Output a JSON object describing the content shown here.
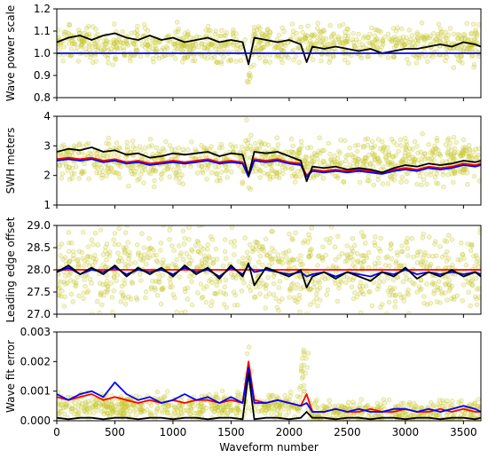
{
  "chart_data": [
    {
      "type": "line",
      "ylabel": "Wave power scale",
      "ylim": [
        0.8,
        1.2
      ],
      "yticks": [
        "0.8",
        "0.9",
        "1.0",
        "1.1",
        "1.2"
      ],
      "xlim": [
        0,
        3650
      ],
      "x": [
        0,
        100,
        200,
        300,
        400,
        500,
        600,
        700,
        800,
        900,
        1000,
        1100,
        1200,
        1300,
        1400,
        1500,
        1600,
        1650,
        1700,
        1800,
        1900,
        2000,
        2100,
        2150,
        2200,
        2300,
        2400,
        2500,
        2600,
        2700,
        2800,
        2900,
        3000,
        3100,
        3200,
        3300,
        3400,
        3500,
        3600,
        3650
      ],
      "series": [
        {
          "color": "#000000",
          "values": [
            1.05,
            1.07,
            1.08,
            1.06,
            1.08,
            1.09,
            1.07,
            1.06,
            1.08,
            1.06,
            1.07,
            1.05,
            1.06,
            1.07,
            1.05,
            1.06,
            1.05,
            0.95,
            1.07,
            1.06,
            1.05,
            1.06,
            1.04,
            0.96,
            1.03,
            1.02,
            1.03,
            1.02,
            1.01,
            1.02,
            1.0,
            1.01,
            1.02,
            1.02,
            1.03,
            1.04,
            1.03,
            1.05,
            1.04,
            1.03
          ]
        },
        {
          "color": "#0000ff",
          "values": [
            1.0,
            1.0,
            1.0,
            1.0,
            1.0,
            1.0,
            1.0,
            1.0,
            1.0,
            1.0,
            1.0,
            1.0,
            1.0,
            1.0,
            1.0,
            1.0,
            1.0,
            1.0,
            1.0,
            1.0,
            1.0,
            1.0,
            1.0,
            1.0,
            1.0,
            1.0,
            1.0,
            1.0,
            1.0,
            1.0,
            1.0,
            1.0,
            1.0,
            1.0,
            1.0,
            1.0,
            1.0,
            1.0,
            1.0,
            1.0
          ]
        }
      ],
      "scatter": {
        "color": "#c8c832",
        "center": 1.04,
        "spread": 0.04
      }
    },
    {
      "type": "line",
      "ylabel": "SWH meters",
      "ylim": [
        1,
        4
      ],
      "yticks": [
        "1",
        "2",
        "3",
        "4"
      ],
      "xlim": [
        0,
        3650
      ],
      "x": [
        0,
        100,
        200,
        300,
        400,
        500,
        600,
        700,
        800,
        900,
        1000,
        1100,
        1200,
        1300,
        1400,
        1500,
        1600,
        1650,
        1700,
        1800,
        1900,
        2000,
        2100,
        2150,
        2200,
        2300,
        2400,
        2500,
        2600,
        2700,
        2800,
        2900,
        3000,
        3100,
        3200,
        3300,
        3400,
        3500,
        3600,
        3650
      ],
      "series": [
        {
          "color": "#ff0000",
          "values": [
            2.55,
            2.6,
            2.55,
            2.6,
            2.5,
            2.55,
            2.45,
            2.5,
            2.4,
            2.45,
            2.5,
            2.45,
            2.5,
            2.55,
            2.45,
            2.5,
            2.45,
            2.0,
            2.55,
            2.5,
            2.55,
            2.45,
            2.4,
            2.0,
            2.2,
            2.15,
            2.2,
            2.15,
            2.2,
            2.15,
            2.1,
            2.2,
            2.25,
            2.2,
            2.3,
            2.25,
            2.3,
            2.4,
            2.35,
            2.4
          ]
        },
        {
          "color": "#0000ff",
          "values": [
            2.5,
            2.55,
            2.5,
            2.55,
            2.45,
            2.5,
            2.4,
            2.45,
            2.35,
            2.4,
            2.45,
            2.4,
            2.45,
            2.5,
            2.4,
            2.45,
            2.4,
            1.95,
            2.5,
            2.45,
            2.5,
            2.4,
            2.35,
            1.95,
            2.15,
            2.1,
            2.15,
            2.1,
            2.15,
            2.1,
            2.05,
            2.15,
            2.2,
            2.15,
            2.25,
            2.2,
            2.25,
            2.35,
            2.3,
            2.35
          ]
        },
        {
          "color": "#000000",
          "values": [
            2.8,
            2.9,
            2.85,
            2.95,
            2.8,
            2.85,
            2.7,
            2.75,
            2.6,
            2.65,
            2.75,
            2.7,
            2.75,
            2.8,
            2.65,
            2.75,
            2.7,
            2.0,
            2.8,
            2.75,
            2.8,
            2.65,
            2.5,
            1.8,
            2.3,
            2.25,
            2.3,
            2.2,
            2.25,
            2.2,
            2.1,
            2.25,
            2.35,
            2.3,
            2.4,
            2.35,
            2.4,
            2.5,
            2.45,
            2.5
          ]
        }
      ],
      "scatter": {
        "color": "#c8c832",
        "center": 2.5,
        "spread": 0.35
      }
    },
    {
      "type": "line",
      "ylabel": "Leading edge offset",
      "ylim": [
        27.0,
        29.0
      ],
      "yticks": [
        "27.0",
        "27.5",
        "28.0",
        "28.5",
        "29.0"
      ],
      "xlim": [
        0,
        3650
      ],
      "x": [
        0,
        100,
        200,
        300,
        400,
        500,
        600,
        700,
        800,
        900,
        1000,
        1100,
        1200,
        1300,
        1400,
        1500,
        1600,
        1650,
        1700,
        1800,
        1900,
        2000,
        2100,
        2150,
        2200,
        2300,
        2400,
        2500,
        2600,
        2700,
        2800,
        2900,
        3000,
        3100,
        3200,
        3300,
        3400,
        3500,
        3600,
        3650
      ],
      "series": [
        {
          "color": "#ff0000",
          "values": [
            28.0,
            28.0,
            28.0,
            28.0,
            28.0,
            28.0,
            28.0,
            28.0,
            28.0,
            28.0,
            28.0,
            28.0,
            28.0,
            28.0,
            28.0,
            28.0,
            28.0,
            28.0,
            28.0,
            28.0,
            28.0,
            28.0,
            28.0,
            28.0,
            28.0,
            28.0,
            28.0,
            28.0,
            28.0,
            28.0,
            28.0,
            28.0,
            28.0,
            28.0,
            28.0,
            28.0,
            28.0,
            28.0,
            28.0,
            28.0
          ]
        },
        {
          "color": "#0000ff",
          "values": [
            27.95,
            28.05,
            27.9,
            28.0,
            27.95,
            28.05,
            27.9,
            28.0,
            27.95,
            28.0,
            27.9,
            28.05,
            27.95,
            28.0,
            27.85,
            28.05,
            27.9,
            28.1,
            27.95,
            28.0,
            27.95,
            27.9,
            27.95,
            27.85,
            27.9,
            27.95,
            27.85,
            27.95,
            27.9,
            27.85,
            27.95,
            27.9,
            28.0,
            27.9,
            27.95,
            27.9,
            27.95,
            27.9,
            27.95,
            27.9
          ]
        },
        {
          "color": "#000000",
          "values": [
            27.95,
            28.1,
            27.9,
            28.05,
            27.9,
            28.1,
            27.85,
            28.05,
            27.9,
            28.05,
            27.85,
            28.1,
            27.9,
            28.05,
            27.8,
            28.1,
            27.85,
            28.15,
            27.65,
            28.05,
            27.95,
            27.85,
            28.0,
            27.6,
            27.85,
            27.95,
            27.8,
            27.95,
            27.85,
            27.75,
            27.95,
            27.85,
            28.05,
            27.8,
            27.95,
            27.85,
            28.0,
            27.85,
            27.95,
            27.85
          ]
        }
      ],
      "scatter": {
        "color": "#c8c832",
        "center": 28.0,
        "spread": 0.45
      }
    },
    {
      "type": "line",
      "ylabel": "Wave fit error",
      "xlabel": "Waveform number",
      "ylim": [
        0,
        0.003
      ],
      "yticks": [
        "0.000",
        "0.001",
        "0.002",
        "0.003"
      ],
      "xlim": [
        0,
        3650
      ],
      "xticks": [
        "0",
        "500",
        "1000",
        "1500",
        "2000",
        "2500",
        "3000",
        "3500"
      ],
      "x": [
        0,
        100,
        200,
        300,
        400,
        500,
        600,
        700,
        800,
        900,
        1000,
        1100,
        1200,
        1300,
        1400,
        1500,
        1600,
        1650,
        1700,
        1800,
        1900,
        2000,
        2100,
        2150,
        2200,
        2300,
        2400,
        2500,
        2600,
        2700,
        2800,
        2900,
        3000,
        3100,
        3200,
        3300,
        3400,
        3500,
        3600,
        3650
      ],
      "series": [
        {
          "color": "#ff0000",
          "values": [
            0.0008,
            0.0007,
            0.0008,
            0.0009,
            0.0007,
            0.0008,
            0.0007,
            0.0006,
            0.0007,
            0.0006,
            0.0007,
            0.0006,
            0.0007,
            0.0007,
            0.0006,
            0.0007,
            0.0006,
            0.002,
            0.0007,
            0.0006,
            0.0007,
            0.0006,
            0.0005,
            0.0009,
            0.0003,
            0.0003,
            0.0004,
            0.0003,
            0.0003,
            0.0004,
            0.0003,
            0.0003,
            0.0004,
            0.0003,
            0.0003,
            0.0004,
            0.0003,
            0.0004,
            0.0003,
            0.0003
          ]
        },
        {
          "color": "#0000ff",
          "values": [
            0.0009,
            0.0007,
            0.0009,
            0.001,
            0.0008,
            0.0013,
            0.0009,
            0.0007,
            0.0008,
            0.0006,
            0.0007,
            0.0009,
            0.0007,
            0.0008,
            0.0006,
            0.0008,
            0.0006,
            0.0018,
            0.0006,
            0.0006,
            0.0007,
            0.0006,
            0.0005,
            0.0006,
            0.0003,
            0.0003,
            0.0004,
            0.0003,
            0.0004,
            0.0003,
            0.0003,
            0.0004,
            0.0004,
            0.0003,
            0.0004,
            0.0003,
            0.0004,
            0.0005,
            0.0004,
            0.0003
          ]
        },
        {
          "color": "#000000",
          "values": [
            0.0001,
            5e-05,
            0.0001,
            0.0001,
            5e-05,
            0.0001,
            0.0001,
            5e-05,
            0.0001,
            0.0001,
            5e-05,
            0.0001,
            0.0001,
            5e-05,
            0.0001,
            0.0001,
            5e-05,
            0.0016,
            5e-05,
            0.0001,
            0.0001,
            5e-05,
            0.0001,
            0.0003,
            0.0001,
            0.0001,
            5e-05,
            0.0001,
            0.0001,
            5e-05,
            0.0001,
            0.0001,
            5e-05,
            0.0001,
            0.0001,
            5e-05,
            0.0001,
            0.0001,
            5e-05,
            0.0001
          ]
        }
      ],
      "scatter": {
        "color": "#c8c832",
        "center": 0.0005,
        "spread": 0.0002
      }
    }
  ]
}
